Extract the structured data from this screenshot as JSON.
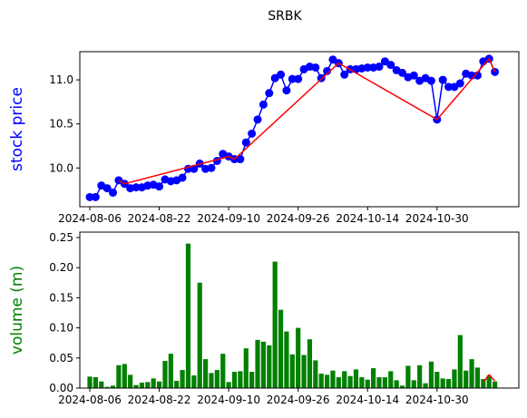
{
  "title": "SRBK",
  "chart_data": [
    {
      "type": "line",
      "ylabel": "stock price",
      "ylabel_color": "blue",
      "categories": [
        "2024-08-06",
        null,
        null,
        null,
        null,
        null,
        null,
        null,
        null,
        null,
        null,
        null,
        "2024-08-22",
        null,
        null,
        null,
        null,
        null,
        null,
        null,
        null,
        null,
        null,
        null,
        "2024-09-10",
        null,
        null,
        null,
        null,
        null,
        null,
        null,
        null,
        null,
        null,
        null,
        "2024-09-26",
        null,
        null,
        null,
        null,
        null,
        null,
        null,
        null,
        null,
        null,
        null,
        "2024-10-14",
        null,
        null,
        null,
        null,
        null,
        null,
        null,
        null,
        null,
        null,
        null,
        "2024-10-30",
        null,
        null,
        null,
        null,
        null,
        null,
        null,
        null,
        null,
        null
      ],
      "ylim": [
        9.56,
        11.32
      ],
      "yticks": [
        {
          "value": 10.0,
          "label": "10.0"
        },
        {
          "value": 10.5,
          "label": "10.5"
        },
        {
          "value": 11.0,
          "label": "11.0"
        }
      ],
      "series": [
        {
          "color": "blue",
          "marker": true,
          "values": [
            9.67,
            9.67,
            9.8,
            9.77,
            9.72,
            9.86,
            9.82,
            9.77,
            9.78,
            9.78,
            9.8,
            9.81,
            9.79,
            9.87,
            9.85,
            9.86,
            9.89,
            9.99,
            9.99,
            10.05,
            9.99,
            10.0,
            10.08,
            10.16,
            10.13,
            10.1,
            10.1,
            10.29,
            10.39,
            10.55,
            10.72,
            10.85,
            11.02,
            11.06,
            10.88,
            11.01,
            11.01,
            11.12,
            11.15,
            11.14,
            11.02,
            11.1,
            11.23,
            11.19,
            11.06,
            11.12,
            11.12,
            11.13,
            11.14,
            11.14,
            11.15,
            11.21,
            11.17,
            11.11,
            11.08,
            11.03,
            11.05,
            10.99,
            11.02,
            10.99,
            10.55,
            11.0,
            10.92,
            10.92,
            10.96,
            11.07,
            11.05,
            11.05,
            11.21,
            11.24,
            11.09
          ]
        },
        {
          "color": "red",
          "connect_gaps": true,
          "values": [
            null,
            null,
            null,
            null,
            null,
            9.86,
            9.82,
            null,
            null,
            null,
            null,
            null,
            null,
            null,
            null,
            null,
            null,
            null,
            null,
            null,
            null,
            null,
            null,
            null,
            10.13,
            10.1,
            null,
            null,
            null,
            null,
            null,
            null,
            null,
            null,
            null,
            null,
            null,
            null,
            null,
            null,
            null,
            null,
            null,
            11.19,
            null,
            null,
            null,
            null,
            null,
            null,
            null,
            null,
            null,
            null,
            null,
            null,
            null,
            null,
            null,
            null,
            10.55,
            null,
            null,
            null,
            null,
            null,
            null,
            null,
            null,
            11.24,
            11.09
          ]
        }
      ]
    },
    {
      "type": "bar",
      "ylabel": "volume (m)",
      "ylabel_color": "green",
      "categories": [
        "2024-08-06",
        null,
        null,
        null,
        null,
        null,
        null,
        null,
        null,
        null,
        null,
        null,
        "2024-08-22",
        null,
        null,
        null,
        null,
        null,
        null,
        null,
        null,
        null,
        null,
        null,
        "2024-09-10",
        null,
        null,
        null,
        null,
        null,
        null,
        null,
        null,
        null,
        null,
        null,
        "2024-09-26",
        null,
        null,
        null,
        null,
        null,
        null,
        null,
        null,
        null,
        null,
        null,
        "2024-10-14",
        null,
        null,
        null,
        null,
        null,
        null,
        null,
        null,
        null,
        null,
        null,
        "2024-10-30",
        null,
        null,
        null,
        null,
        null,
        null,
        null,
        null,
        null,
        null
      ],
      "ylim": [
        0,
        0.259
      ],
      "yticks": [
        {
          "value": 0,
          "label": "0.00"
        },
        {
          "value": 0.05,
          "label": "0.05"
        },
        {
          "value": 0.1,
          "label": "0.10"
        },
        {
          "value": 0.15,
          "label": "0.15"
        },
        {
          "value": 0.2,
          "label": "0.20"
        },
        {
          "value": 0.25,
          "label": "0.25"
        }
      ],
      "series": [
        {
          "color": "green",
          "values": [
            0.019,
            0.018,
            0.011,
            0.002,
            0.004,
            0.038,
            0.04,
            0.022,
            0.005,
            0.009,
            0.01,
            0.016,
            0.011,
            0.045,
            0.057,
            0.012,
            0.03,
            0.24,
            0.021,
            0.175,
            0.048,
            0.025,
            0.03,
            0.057,
            0.01,
            0.027,
            0.028,
            0.066,
            0.027,
            0.08,
            0.077,
            0.071,
            0.21,
            0.13,
            0.094,
            0.056,
            0.1,
            0.055,
            0.081,
            0.046,
            0.024,
            0.022,
            0.029,
            0.018,
            0.028,
            0.02,
            0.031,
            0.018,
            0.014,
            0.033,
            0.018,
            0.018,
            0.028,
            0.013,
            0.004,
            0.037,
            0.013,
            0.038,
            0.008,
            0.044,
            0.027,
            0.016,
            0.015,
            0.031,
            0.088,
            0.029,
            0.048,
            0.034,
            0.015,
            0.021,
            0.011
          ]
        },
        {
          "color": "red",
          "type": "line",
          "values": [
            null,
            null,
            null,
            null,
            null,
            null,
            null,
            null,
            null,
            null,
            null,
            null,
            null,
            null,
            null,
            null,
            null,
            null,
            null,
            null,
            null,
            null,
            null,
            null,
            null,
            null,
            null,
            null,
            null,
            null,
            null,
            null,
            null,
            null,
            null,
            null,
            null,
            null,
            null,
            null,
            null,
            null,
            null,
            null,
            null,
            null,
            null,
            null,
            null,
            null,
            null,
            null,
            null,
            null,
            null,
            null,
            null,
            null,
            null,
            null,
            null,
            null,
            null,
            null,
            null,
            null,
            null,
            null,
            0.01,
            0.022,
            0.012
          ]
        }
      ]
    }
  ]
}
